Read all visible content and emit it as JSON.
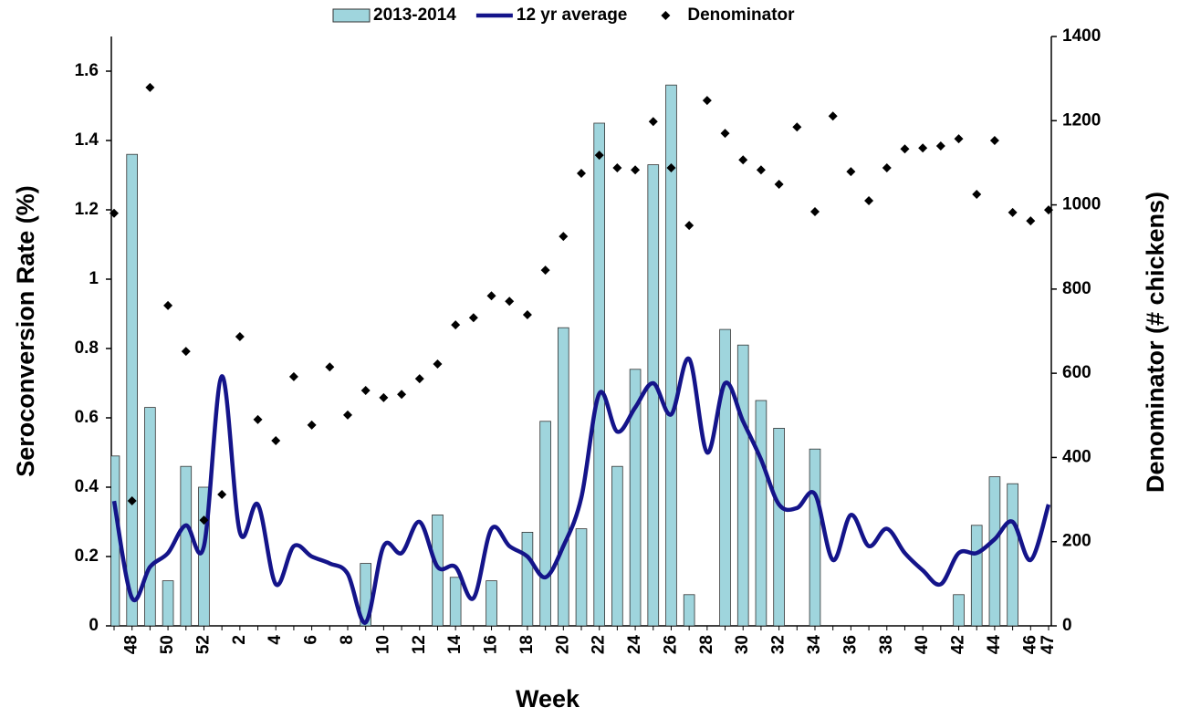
{
  "chart_data": {
    "type": "combo",
    "x_label": "Week",
    "y_label": "Seroconversion Rate (%)",
    "y2_label": "Denominator (# chickens)",
    "categories": [
      null,
      "48",
      null,
      "50",
      null,
      "52",
      null,
      "2",
      null,
      "4",
      null,
      "6",
      null,
      "8",
      null,
      "10",
      null,
      "12",
      null,
      "14",
      null,
      "16",
      null,
      "18",
      null,
      "20",
      null,
      "22",
      null,
      "24",
      null,
      "26",
      null,
      "28",
      null,
      "30",
      null,
      "32",
      null,
      "34",
      null,
      "36",
      null,
      "38",
      null,
      "40",
      null,
      "42",
      null,
      "44",
      null,
      "46",
      "47"
    ],
    "ylim": [
      0,
      1.7
    ],
    "yticks": [
      0,
      0.2,
      0.4,
      0.6,
      0.8,
      1,
      1.2,
      1.4,
      1.6
    ],
    "y2lim": [
      0,
      1400
    ],
    "y2ticks": [
      0,
      200,
      400,
      600,
      800,
      1000,
      1200,
      1400
    ],
    "legend": "top",
    "series": [
      {
        "name": "2013-2014",
        "type": "bar",
        "color": "#9fd5dd",
        "values": [
          0.49,
          1.36,
          0.63,
          0.13,
          0.46,
          0.4,
          0,
          0,
          0,
          0,
          0,
          0,
          0,
          0,
          0.18,
          0,
          0,
          0,
          0.32,
          0.14,
          0,
          0.13,
          0,
          0.27,
          0.59,
          0.86,
          0.28,
          1.45,
          0.46,
          0.74,
          1.33,
          1.56,
          0.09,
          0,
          0.855,
          0.81,
          0.65,
          0.57,
          0,
          0.51,
          0,
          0,
          0,
          0,
          0,
          0,
          0,
          0.09,
          0.29,
          0.43,
          0.41,
          0,
          0
        ]
      },
      {
        "name": "12 yr average",
        "type": "line",
        "color": "#14148a",
        "values": [
          0.36,
          0.08,
          0.17,
          0.21,
          0.29,
          0.23,
          0.72,
          0.27,
          0.35,
          0.12,
          0.23,
          0.2,
          0.18,
          0.15,
          0.01,
          0.23,
          0.21,
          0.3,
          0.17,
          0.17,
          0.08,
          0.28,
          0.23,
          0.2,
          0.14,
          0.23,
          0.37,
          0.67,
          0.56,
          0.63,
          0.7,
          0.61,
          0.77,
          0.5,
          0.7,
          0.59,
          0.48,
          0.35,
          0.34,
          0.38,
          0.19,
          0.32,
          0.23,
          0.28,
          0.21,
          0.16,
          0.12,
          0.21,
          0.21,
          0.25,
          0.3,
          0.19,
          0.35
        ]
      },
      {
        "name": "Denominator",
        "type": "scatter",
        "axis": "y2",
        "color": "#000000",
        "values": [
          980,
          297,
          1279,
          761,
          652,
          251,
          312,
          687,
          490,
          440,
          592,
          477,
          615,
          501,
          559,
          542,
          550,
          587,
          622,
          715,
          732,
          784,
          771,
          739,
          845,
          925,
          1075,
          1118,
          1088,
          1083,
          1198,
          1088,
          951,
          1248,
          1170,
          1107,
          1083,
          1049,
          1185,
          984,
          1211,
          1079,
          1010,
          1088,
          1133,
          1135,
          1140,
          1157,
          1025,
          1153,
          982,
          962,
          988
        ]
      }
    ]
  }
}
